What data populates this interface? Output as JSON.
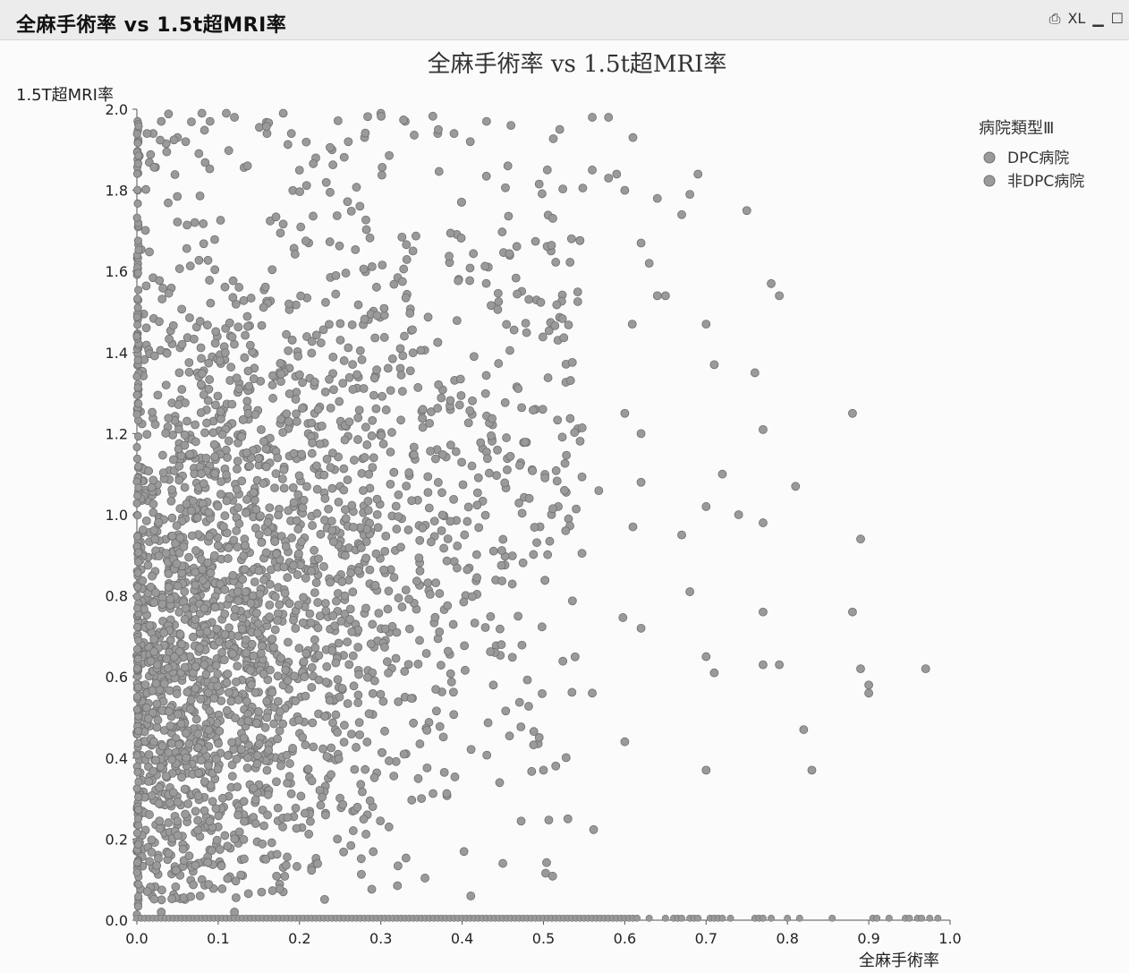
{
  "window": {
    "title": "全麻手術率 vs 1.5t超MRI率",
    "controls": [
      {
        "name": "print-icon",
        "label": "⎙"
      },
      {
        "name": "excel-icon",
        "label": "XL"
      },
      {
        "name": "minimize-icon",
        "label": "▁"
      },
      {
        "name": "maximize-icon",
        "label": "☐"
      }
    ]
  },
  "colors": {
    "point_fill": "#9a9a9a",
    "point_stroke": "#6f6f6f",
    "axis": "#555555"
  },
  "chart_data": {
    "type": "scatter",
    "title": "全麻手術率 vs 1.5t超MRI率",
    "xlabel": "全麻手術率",
    "ylabel": "1.5T超MRI率",
    "xlim": [
      0.0,
      1.0
    ],
    "ylim": [
      0.0,
      2.0
    ],
    "xticks": [
      "0.0",
      "0.1",
      "0.2",
      "0.3",
      "0.4",
      "0.5",
      "0.6",
      "0.7",
      "0.8",
      "0.9",
      "1.0"
    ],
    "yticks": [
      "0.0",
      "0.2",
      "0.4",
      "0.6",
      "0.8",
      "1.0",
      "1.2",
      "1.4",
      "1.6",
      "1.8",
      "2.0"
    ],
    "grid": false,
    "legend": {
      "title": "病院類型Ⅲ",
      "placement": "top-right",
      "entries": [
        "DPC病院",
        "非DPC病院"
      ]
    },
    "series": [
      {
        "name": "DPC病院",
        "points": [
          [
            0.02,
            1.94
          ],
          [
            0.03,
            1.97
          ],
          [
            0.05,
            1.93
          ],
          [
            0.06,
            1.92
          ],
          [
            0.08,
            1.99
          ],
          [
            0.09,
            1.97
          ],
          [
            0.11,
            1.99
          ],
          [
            0.12,
            1.98
          ],
          [
            0.16,
            1.94
          ],
          [
            0.18,
            1.99
          ],
          [
            0.19,
            1.94
          ],
          [
            0.22,
            1.88
          ],
          [
            0.24,
            1.9
          ],
          [
            0.26,
            1.92
          ],
          [
            0.28,
            1.93
          ],
          [
            0.3,
            1.99
          ],
          [
            0.33,
            1.97
          ],
          [
            0.37,
            1.94
          ],
          [
            0.39,
            1.94
          ],
          [
            0.41,
            1.92
          ],
          [
            0.43,
            1.97
          ],
          [
            0.46,
            1.96
          ],
          [
            0.52,
            1.95
          ],
          [
            0.56,
            1.98
          ],
          [
            0.58,
            1.98
          ],
          [
            0.61,
            1.93
          ],
          [
            0.56,
            1.85
          ],
          [
            0.58,
            1.83
          ],
          [
            0.59,
            1.84
          ],
          [
            0.69,
            1.84
          ],
          [
            0.68,
            1.79
          ],
          [
            0.67,
            1.74
          ],
          [
            0.75,
            1.75
          ],
          [
            0.65,
            1.54
          ],
          [
            0.64,
            1.54
          ],
          [
            0.78,
            1.57
          ],
          [
            0.79,
            1.54
          ],
          [
            0.7,
            1.47
          ],
          [
            0.71,
            1.37
          ],
          [
            0.76,
            1.35
          ],
          [
            0.88,
            1.25
          ],
          [
            0.77,
            1.21
          ],
          [
            0.81,
            1.07
          ],
          [
            0.72,
            1.1
          ],
          [
            0.7,
            1.02
          ],
          [
            0.74,
            1.0
          ],
          [
            0.77,
            0.98
          ],
          [
            0.67,
            0.95
          ],
          [
            0.89,
            0.94
          ],
          [
            0.68,
            0.81
          ],
          [
            0.77,
            0.76
          ],
          [
            0.88,
            0.76
          ],
          [
            0.62,
            0.72
          ],
          [
            0.7,
            0.65
          ],
          [
            0.71,
            0.61
          ],
          [
            0.77,
            0.63
          ],
          [
            0.79,
            0.63
          ],
          [
            0.89,
            0.62
          ],
          [
            0.9,
            0.58
          ],
          [
            0.9,
            0.56
          ],
          [
            0.97,
            0.62
          ],
          [
            0.82,
            0.47
          ],
          [
            0.6,
            0.44
          ],
          [
            0.7,
            0.37
          ],
          [
            0.83,
            0.37
          ],
          [
            0.5,
            0.37
          ],
          [
            0.53,
            0.25
          ],
          [
            0.45,
            0.14
          ],
          [
            0.31,
            0.23
          ],
          [
            0.29,
            0.28
          ],
          [
            0.35,
            0.3
          ],
          [
            0.22,
            0.14
          ],
          [
            0.18,
            0.13
          ],
          [
            0.18,
            0.07
          ],
          [
            0.13,
            0.11
          ],
          [
            0.08,
            0.1
          ],
          [
            0.05,
            0.12
          ],
          [
            0.03,
            0.02
          ],
          [
            0.12,
            0.02
          ],
          [
            0.56,
            0.56
          ],
          [
            0.61,
            0.97
          ],
          [
            0.62,
            1.08
          ],
          [
            0.6,
            1.25
          ],
          [
            0.62,
            1.2
          ],
          [
            0.63,
            1.62
          ],
          [
            0.62,
            1.67
          ],
          [
            0.6,
            1.8
          ],
          [
            0.64,
            1.78
          ]
        ]
      },
      {
        "name": "非DPC病院",
        "points": []
      }
    ]
  }
}
